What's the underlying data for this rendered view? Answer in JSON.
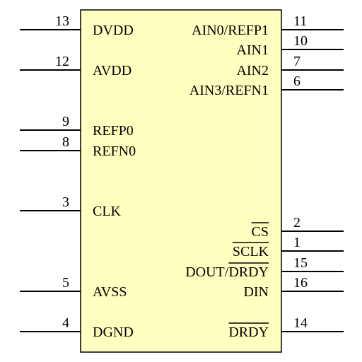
{
  "chip": {
    "body_fill": "#ffffc0",
    "outline_color": "#000000",
    "pins_left": [
      {
        "number": "13",
        "name": "DVDD",
        "overbar": ""
      },
      {
        "number": "12",
        "name": "AVDD",
        "overbar": ""
      },
      {
        "number": "9",
        "name": "REFP0",
        "overbar": ""
      },
      {
        "number": "8",
        "name": "REFN0",
        "overbar": ""
      },
      {
        "number": "3",
        "name": "CLK",
        "overbar": ""
      },
      {
        "number": "5",
        "name": "AVSS",
        "overbar": ""
      },
      {
        "number": "4",
        "name": "DGND",
        "overbar": ""
      }
    ],
    "pins_right": [
      {
        "number": "11",
        "name": "AIN0/REFP1",
        "overbar": ""
      },
      {
        "number": "10",
        "name": "AIN1",
        "overbar": ""
      },
      {
        "number": "7",
        "name": "AIN2",
        "overbar": ""
      },
      {
        "number": "6",
        "name": "AIN3/REFN1",
        "overbar": ""
      },
      {
        "number": "2",
        "name": "CS",
        "overbar": "CS"
      },
      {
        "number": "1",
        "name": "SCLK",
        "overbar": "SCLK"
      },
      {
        "number": "15",
        "name": "DOUT/DRDY",
        "overbar": "DRDY"
      },
      {
        "number": "16",
        "name": "DIN",
        "overbar": ""
      },
      {
        "number": "14",
        "name": "DRDY",
        "overbar": "DRDY"
      }
    ]
  }
}
